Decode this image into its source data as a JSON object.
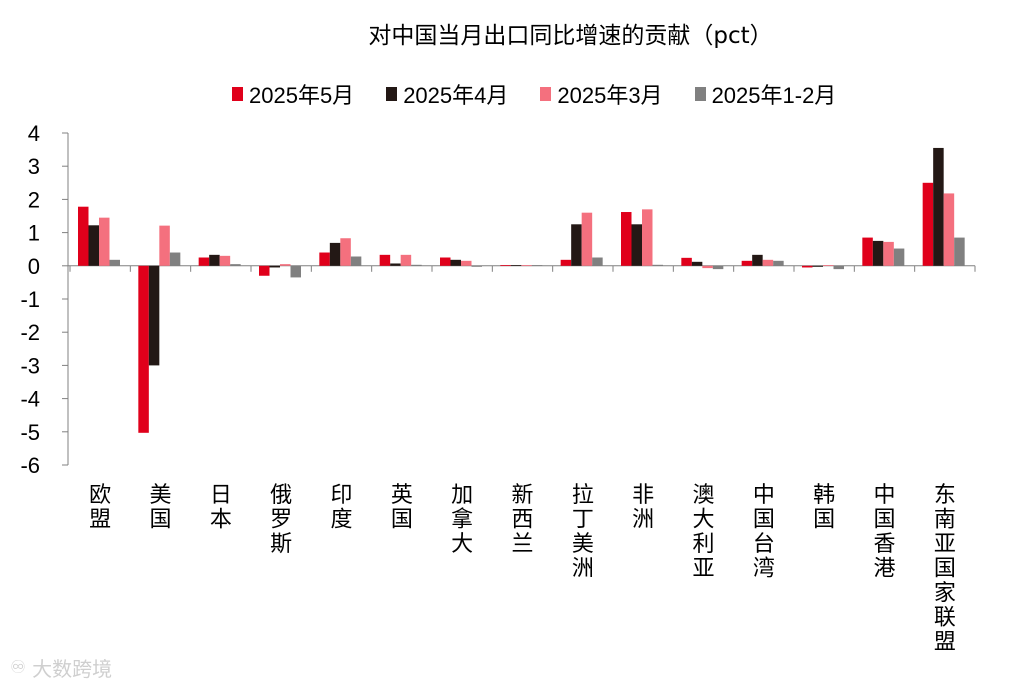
{
  "chart_data": {
    "type": "bar",
    "title": "对中国当月出口同比增速的贡献（pct）",
    "xlabel": "",
    "ylabel": "",
    "ylim": [
      -6,
      4
    ],
    "yticks": [
      4,
      3,
      2,
      1,
      0,
      -1,
      -2,
      -3,
      -4,
      -5,
      -6
    ],
    "grid": false,
    "legend_position": "top",
    "categories": [
      "欧盟",
      "美国",
      "日本",
      "俄罗斯",
      "印度",
      "英国",
      "加拿大",
      "新西兰",
      "拉丁美洲",
      "非洲",
      "澳大利亚",
      "中国台湾",
      "韩国",
      "中国香港",
      "东南亚国家联盟"
    ],
    "series": [
      {
        "name": "2025年5月",
        "color": "#e0001b",
        "values": [
          1.78,
          -5.03,
          0.25,
          -0.3,
          0.4,
          0.33,
          0.25,
          0.02,
          0.18,
          1.62,
          0.24,
          0.15,
          -0.05,
          0.85,
          2.5
        ]
      },
      {
        "name": "2025年4月",
        "color": "#231815",
        "values": [
          1.22,
          -3.0,
          0.33,
          -0.05,
          0.69,
          0.07,
          0.18,
          0.02,
          1.25,
          1.25,
          0.12,
          0.33,
          -0.03,
          0.75,
          3.55
        ]
      },
      {
        "name": "2025年3月",
        "color": "#f4707e",
        "values": [
          1.45,
          1.21,
          0.3,
          0.05,
          0.83,
          0.33,
          0.15,
          0.02,
          1.6,
          1.7,
          -0.07,
          0.18,
          0.02,
          0.72,
          2.18
        ]
      },
      {
        "name": "2025年1-2月",
        "color": "#808080",
        "values": [
          0.18,
          0.4,
          0.05,
          -0.35,
          0.28,
          0.03,
          -0.03,
          0.02,
          0.25,
          0.03,
          -0.1,
          0.15,
          -0.1,
          0.52,
          0.85
        ]
      }
    ]
  },
  "watermark": {
    "text": "大数跨境",
    "icon": "logo-icon"
  }
}
